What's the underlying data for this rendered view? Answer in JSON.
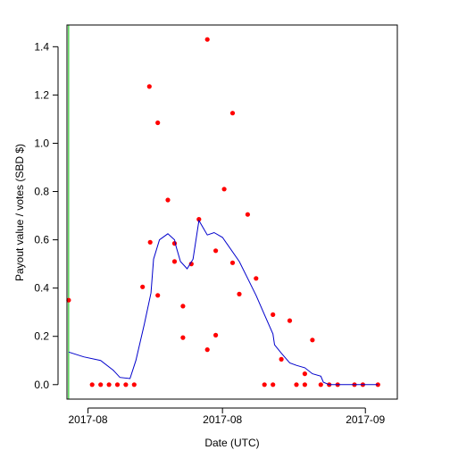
{
  "chart_data": {
    "type": "scatter",
    "xlabel": "Date (UTC)",
    "ylabel": "Payout value / votes (SBD $)",
    "x_tick_labels": [
      "2017-08",
      "2017-08",
      "2017-09"
    ],
    "x_tick_values": [
      2.5,
      18.5,
      35.5
    ],
    "xlim": [
      0,
      39.3
    ],
    "ylim": [
      -0.06,
      1.49
    ],
    "y_ticks": [
      0.0,
      0.2,
      0.4,
      0.6,
      0.8,
      1.0,
      1.2,
      1.4
    ],
    "grid": false,
    "colors": {
      "points": "#ff0000",
      "line": "#0000cc",
      "vline": "#00c000",
      "axes": "#000000"
    },
    "vline_x": 0.2,
    "series": [
      {
        "type": "scatter",
        "points": [
          [
            0.2,
            0.35
          ],
          [
            3,
            0.0
          ],
          [
            4,
            0.0
          ],
          [
            5,
            0.0
          ],
          [
            6,
            0.0
          ],
          [
            7,
            0.0
          ],
          [
            8,
            0.0
          ],
          [
            9,
            0.405
          ],
          [
            9.8,
            1.235
          ],
          [
            9.9,
            0.59
          ],
          [
            10.8,
            1.085
          ],
          [
            10.8,
            0.37
          ],
          [
            12,
            0.765
          ],
          [
            12.8,
            0.585
          ],
          [
            12.8,
            0.51
          ],
          [
            13.8,
            0.325
          ],
          [
            13.8,
            0.195
          ],
          [
            14.8,
            0.5
          ],
          [
            15.7,
            0.685
          ],
          [
            16.7,
            1.43
          ],
          [
            16.7,
            0.145
          ],
          [
            17.7,
            0.555
          ],
          [
            17.7,
            0.205
          ],
          [
            18.7,
            0.81
          ],
          [
            19.7,
            1.125
          ],
          [
            19.7,
            0.505
          ],
          [
            20.5,
            0.375
          ],
          [
            21.5,
            0.705
          ],
          [
            22.5,
            0.44
          ],
          [
            23.5,
            0.0
          ],
          [
            24.5,
            0.0
          ],
          [
            24.5,
            0.29
          ],
          [
            25.5,
            0.105
          ],
          [
            26.5,
            0.265
          ],
          [
            27.3,
            0.0
          ],
          [
            28.3,
            0.0
          ],
          [
            28.3,
            0.045
          ],
          [
            29.2,
            0.185
          ],
          [
            30.2,
            0.0
          ],
          [
            31.2,
            0.0
          ],
          [
            32.2,
            0.0
          ],
          [
            34.2,
            0.0
          ],
          [
            35.2,
            0.0
          ],
          [
            37,
            0.0
          ]
        ]
      },
      {
        "type": "line",
        "points": [
          [
            0.2,
            0.135
          ],
          [
            2,
            0.115
          ],
          [
            4,
            0.1
          ],
          [
            5.5,
            0.06
          ],
          [
            6.3,
            0.03
          ],
          [
            7.5,
            0.025
          ],
          [
            8.2,
            0.1
          ],
          [
            9.2,
            0.25
          ],
          [
            10,
            0.38
          ],
          [
            10.3,
            0.52
          ],
          [
            11,
            0.6
          ],
          [
            12,
            0.625
          ],
          [
            12.8,
            0.6
          ],
          [
            13,
            0.57
          ],
          [
            13.5,
            0.51
          ],
          [
            14.3,
            0.48
          ],
          [
            15,
            0.52
          ],
          [
            15.7,
            0.68
          ],
          [
            16.7,
            0.62
          ],
          [
            17.5,
            0.63
          ],
          [
            18.5,
            0.61
          ],
          [
            20.5,
            0.51
          ],
          [
            21.5,
            0.44
          ],
          [
            22.5,
            0.37
          ],
          [
            23.5,
            0.29
          ],
          [
            24.5,
            0.21
          ],
          [
            24.7,
            0.165
          ],
          [
            25.5,
            0.13
          ],
          [
            26.5,
            0.09
          ],
          [
            27.3,
            0.08
          ],
          [
            28.3,
            0.07
          ],
          [
            29.2,
            0.045
          ],
          [
            30.2,
            0.035
          ],
          [
            30.5,
            0.01
          ],
          [
            31.2,
            0.0
          ],
          [
            37,
            0.0
          ]
        ]
      }
    ]
  }
}
